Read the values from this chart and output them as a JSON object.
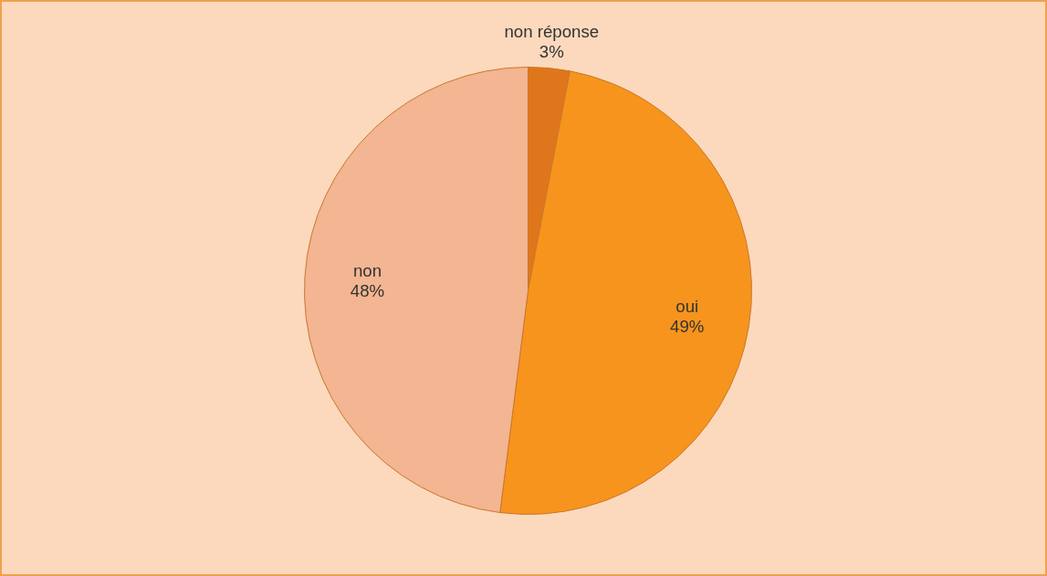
{
  "chart_data": {
    "type": "pie",
    "categories": [
      "non réponse",
      "oui",
      "non"
    ],
    "values": [
      3,
      49,
      48
    ],
    "colors": [
      "#e0761c",
      "#f7941d",
      "#f3b592"
    ],
    "value_labels": [
      "3%",
      "49%",
      "48%"
    ]
  }
}
